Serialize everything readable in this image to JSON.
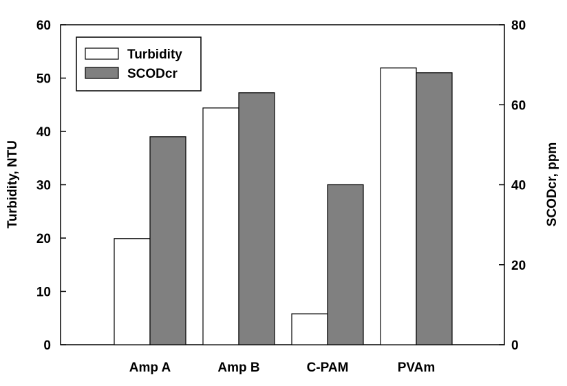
{
  "chart_data": {
    "type": "bar",
    "categories": [
      "Amp A",
      "Amp B",
      "C-PAM",
      "PVAm"
    ],
    "series": [
      {
        "name": "Turbidity",
        "axis": "left",
        "color": "#ffffff",
        "values": [
          19.9,
          44.4,
          5.8,
          51.9
        ]
      },
      {
        "name": "SCODcr",
        "axis": "right",
        "color": "#808080",
        "values": [
          52,
          63,
          40,
          68
        ]
      }
    ],
    "ylabel": "Turbidity, NTU",
    "y2label": "SCODcr, ppm",
    "ylim": [
      0,
      60
    ],
    "y2lim": [
      0,
      80
    ],
    "yticks": [
      "0",
      "10",
      "20",
      "30",
      "40",
      "50",
      "60"
    ],
    "y2ticks": [
      "0",
      "20",
      "40",
      "60",
      "80"
    ],
    "legend_position": "top-left",
    "grid": false
  }
}
